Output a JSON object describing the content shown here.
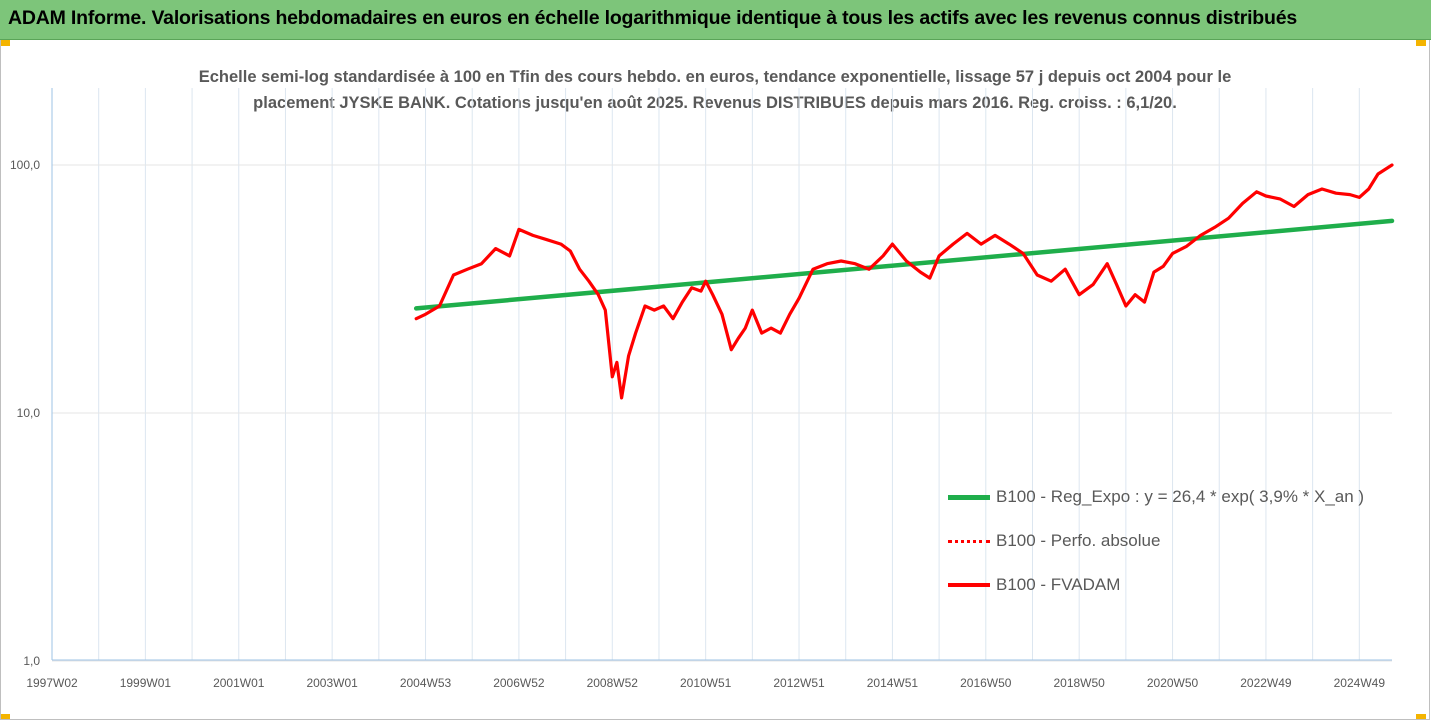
{
  "banner": {
    "title": "ADAM Informe. Valorisations hebdomadaires en euros en échelle logarithmique identique à tous les actifs avec les revenus connus distribués",
    "color": "#7dc57a"
  },
  "chart_data": {
    "type": "line",
    "title": "Echelle semi-log standardisée à 100 en Tfin des cours hebdo. en euros, tendance exponentielle, lissage 57 j depuis oct 2004 pour le placement JYSKE BANK. Cotations jusqu'en août 2025. Revenus DISTRIBUES depuis mars 2016. Reg. croiss. : 6,1/20.",
    "title_lines": [
      "Echelle semi-log standardisée à 100 en Tfin des cours hebdo. en euros, tendance exponentielle, lissage 57 j depuis oct 2004 pour le",
      "placement JYSKE BANK. Cotations jusqu'en août 2025. Revenus DISTRIBUES depuis mars 2016. Reg. croiss. : 6,1/20."
    ],
    "y_scale": "log",
    "ylim": [
      1,
      200
    ],
    "y_ticks": [
      {
        "value": 1,
        "label": "1,0"
      },
      {
        "value": 10,
        "label": "10,0"
      },
      {
        "value": 100,
        "label": "100,0"
      }
    ],
    "xlim": [
      1997.0,
      2025.7
    ],
    "x_ticks": [
      {
        "value": 1997.0,
        "label": "1997W02"
      },
      {
        "value": 1999.0,
        "label": "1999W01"
      },
      {
        "value": 2001.0,
        "label": "2001W01"
      },
      {
        "value": 2003.0,
        "label": "2003W01"
      },
      {
        "value": 2005.0,
        "label": "2004W53"
      },
      {
        "value": 2007.0,
        "label": "2006W52"
      },
      {
        "value": 2009.0,
        "label": "2008W52"
      },
      {
        "value": 2011.0,
        "label": "2010W51"
      },
      {
        "value": 2013.0,
        "label": "2012W51"
      },
      {
        "value": 2015.0,
        "label": "2014W51"
      },
      {
        "value": 2017.0,
        "label": "2016W50"
      },
      {
        "value": 2019.0,
        "label": "2018W50"
      },
      {
        "value": 2021.0,
        "label": "2020W50"
      },
      {
        "value": 2023.0,
        "label": "2022W49"
      },
      {
        "value": 2025.0,
        "label": "2024W49"
      }
    ],
    "grid": "vertical",
    "legend_position": "bottom-right",
    "series": [
      {
        "name": "B100 - Reg_Expo : y = 26,4 * exp( 3,9% *  X_an )",
        "color": "#1fae4b",
        "style": "solid",
        "x": [
          2004.8,
          2025.7
        ],
        "y": [
          26.4,
          59.5
        ]
      },
      {
        "name": "B100 - Perfo. absolue",
        "color": "#ff0000",
        "style": "dotted",
        "x": [],
        "y": []
      },
      {
        "name": "B100 - FVADAM",
        "color": "#ff0000",
        "style": "solid",
        "x": [
          2004.8,
          2005.0,
          2005.3,
          2005.6,
          2005.9,
          2006.2,
          2006.5,
          2006.8,
          2007.0,
          2007.3,
          2007.6,
          2007.9,
          2008.1,
          2008.3,
          2008.5,
          2008.7,
          2008.85,
          2009.0,
          2009.1,
          2009.2,
          2009.35,
          2009.5,
          2009.7,
          2009.9,
          2010.1,
          2010.3,
          2010.5,
          2010.7,
          2010.9,
          2011.0,
          2011.15,
          2011.35,
          2011.55,
          2011.7,
          2011.85,
          2012.0,
          2012.2,
          2012.4,
          2012.6,
          2012.8,
          2013.0,
          2013.3,
          2013.6,
          2013.9,
          2014.2,
          2014.5,
          2014.8,
          2015.0,
          2015.3,
          2015.6,
          2015.8,
          2016.0,
          2016.3,
          2016.6,
          2016.9,
          2017.2,
          2017.5,
          2017.8,
          2018.1,
          2018.4,
          2018.7,
          2019.0,
          2019.3,
          2019.6,
          2019.8,
          2020.0,
          2020.2,
          2020.4,
          2020.6,
          2020.8,
          2021.0,
          2021.3,
          2021.6,
          2021.9,
          2022.2,
          2022.5,
          2022.8,
          2023.0,
          2023.3,
          2023.6,
          2023.9,
          2024.2,
          2024.5,
          2024.8,
          2025.0,
          2025.2,
          2025.4,
          2025.7
        ],
        "y": [
          24.0,
          25.0,
          27.0,
          36.0,
          38.0,
          40.0,
          46.0,
          43.0,
          55.0,
          52.0,
          50.0,
          48.0,
          45.0,
          38.0,
          34.0,
          30.0,
          26.0,
          14.0,
          16.0,
          11.5,
          17.0,
          21.0,
          27.0,
          26.0,
          27.0,
          24.0,
          28.0,
          32.0,
          31.0,
          34.0,
          30.0,
          25.0,
          18.0,
          20.0,
          22.0,
          26.0,
          21.0,
          22.0,
          21.0,
          25.0,
          29.0,
          38.0,
          40.0,
          41.0,
          40.0,
          38.0,
          43.0,
          48.0,
          41.0,
          37.0,
          35.0,
          43.0,
          48.0,
          53.0,
          48.0,
          52.0,
          48.0,
          44.0,
          36.0,
          34.0,
          38.0,
          30.0,
          33.0,
          40.0,
          33.0,
          27.0,
          30.0,
          28.0,
          37.0,
          39.0,
          44.0,
          47.0,
          52.0,
          56.0,
          61.0,
          70.0,
          78.0,
          75.0,
          73.0,
          68.0,
          76.0,
          80.0,
          77.0,
          76.0,
          74.0,
          80.0,
          92.0,
          100.0
        ]
      }
    ]
  }
}
